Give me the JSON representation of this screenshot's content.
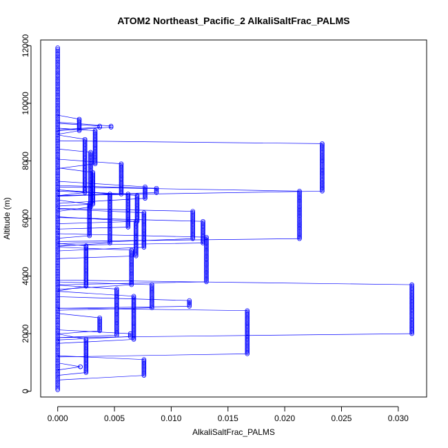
{
  "chart_data": {
    "type": "scatter",
    "title": "ATOM2 Northeast_Pacific_2 AlkaliSaltFrac_PALMS",
    "xlabel": "AlkaliSaltFrac_PALMS",
    "ylabel": "Altitude (m)",
    "xlim": [
      -0.0015,
      0.0325
    ],
    "ylim": [
      -200,
      12200
    ],
    "xticks": [
      0.0,
      0.005,
      0.01,
      0.015,
      0.02,
      0.025,
      0.03
    ],
    "xtick_labels": [
      "0.000",
      "0.005",
      "0.010",
      "0.015",
      "0.020",
      "0.025",
      "0.030"
    ],
    "yticks": [
      0,
      2000,
      4000,
      6000,
      8000,
      10000,
      12000
    ],
    "ytick_labels": [
      "0",
      "2000",
      "4000",
      "6000",
      "8000",
      "10000",
      "12000"
    ],
    "grid": false,
    "legend": "none",
    "marker": "open-circle",
    "connected": true,
    "color": "#0000ff",
    "clusters": [
      {
        "x": 0.0019,
        "y_min": 9050,
        "y_max": 9450
      },
      {
        "x": 0.0037,
        "y_min": 9170,
        "y_max": 9210
      },
      {
        "x": 0.0047,
        "y_min": 9170,
        "y_max": 9210
      },
      {
        "x": 0.0033,
        "y_min": 7900,
        "y_max": 9050
      },
      {
        "x": 0.0024,
        "y_min": 6900,
        "y_max": 8750
      },
      {
        "x": 0.0029,
        "y_min": 6400,
        "y_max": 8300
      },
      {
        "x": 0.0031,
        "y_min": 6500,
        "y_max": 7600
      },
      {
        "x": 0.0028,
        "y_min": 5400,
        "y_max": 6500
      },
      {
        "x": 0.0056,
        "y_min": 6850,
        "y_max": 7900
      },
      {
        "x": 0.0046,
        "y_min": 5150,
        "y_max": 6850
      },
      {
        "x": 0.0062,
        "y_min": 5700,
        "y_max": 6850
      },
      {
        "x": 0.0077,
        "y_min": 6700,
        "y_max": 7100
      },
      {
        "x": 0.0087,
        "y_min": 6900,
        "y_max": 7050
      },
      {
        "x": 0.007,
        "y_min": 5900,
        "y_max": 6800
      },
      {
        "x": 0.0076,
        "y_min": 5000,
        "y_max": 6200
      },
      {
        "x": 0.0069,
        "y_min": 4700,
        "y_max": 5900
      },
      {
        "x": 0.0119,
        "y_min": 5300,
        "y_max": 6250
      },
      {
        "x": 0.0128,
        "y_min": 5150,
        "y_max": 5900
      },
      {
        "x": 0.0213,
        "y_min": 5300,
        "y_max": 6950
      },
      {
        "x": 0.0233,
        "y_min": 6950,
        "y_max": 8600
      },
      {
        "x": 0.0131,
        "y_min": 3800,
        "y_max": 5350
      },
      {
        "x": 0.0025,
        "y_min": 3650,
        "y_max": 5050
      },
      {
        "x": 0.0065,
        "y_min": 3700,
        "y_max": 4900
      },
      {
        "x": 0.0052,
        "y_min": 1950,
        "y_max": 3550
      },
      {
        "x": 0.0037,
        "y_min": 2100,
        "y_max": 2550
      },
      {
        "x": 0.0067,
        "y_min": 1800,
        "y_max": 3300
      },
      {
        "x": 0.0083,
        "y_min": 2900,
        "y_max": 3700
      },
      {
        "x": 0.0116,
        "y_min": 2950,
        "y_max": 3150
      },
      {
        "x": 0.0167,
        "y_min": 1300,
        "y_max": 2800
      },
      {
        "x": 0.0312,
        "y_min": 2000,
        "y_max": 3700
      },
      {
        "x": 0.0025,
        "y_min": 650,
        "y_max": 1800
      },
      {
        "x": 0.0064,
        "y_min": 1900,
        "y_max": 2000
      },
      {
        "x": 0.0076,
        "y_min": 550,
        "y_max": 1100
      },
      {
        "x": 0.002,
        "y_min": 850,
        "y_max": 850
      }
    ],
    "zero_column": {
      "x": 0.0,
      "y_min": 50,
      "y_max": 11950
    }
  }
}
